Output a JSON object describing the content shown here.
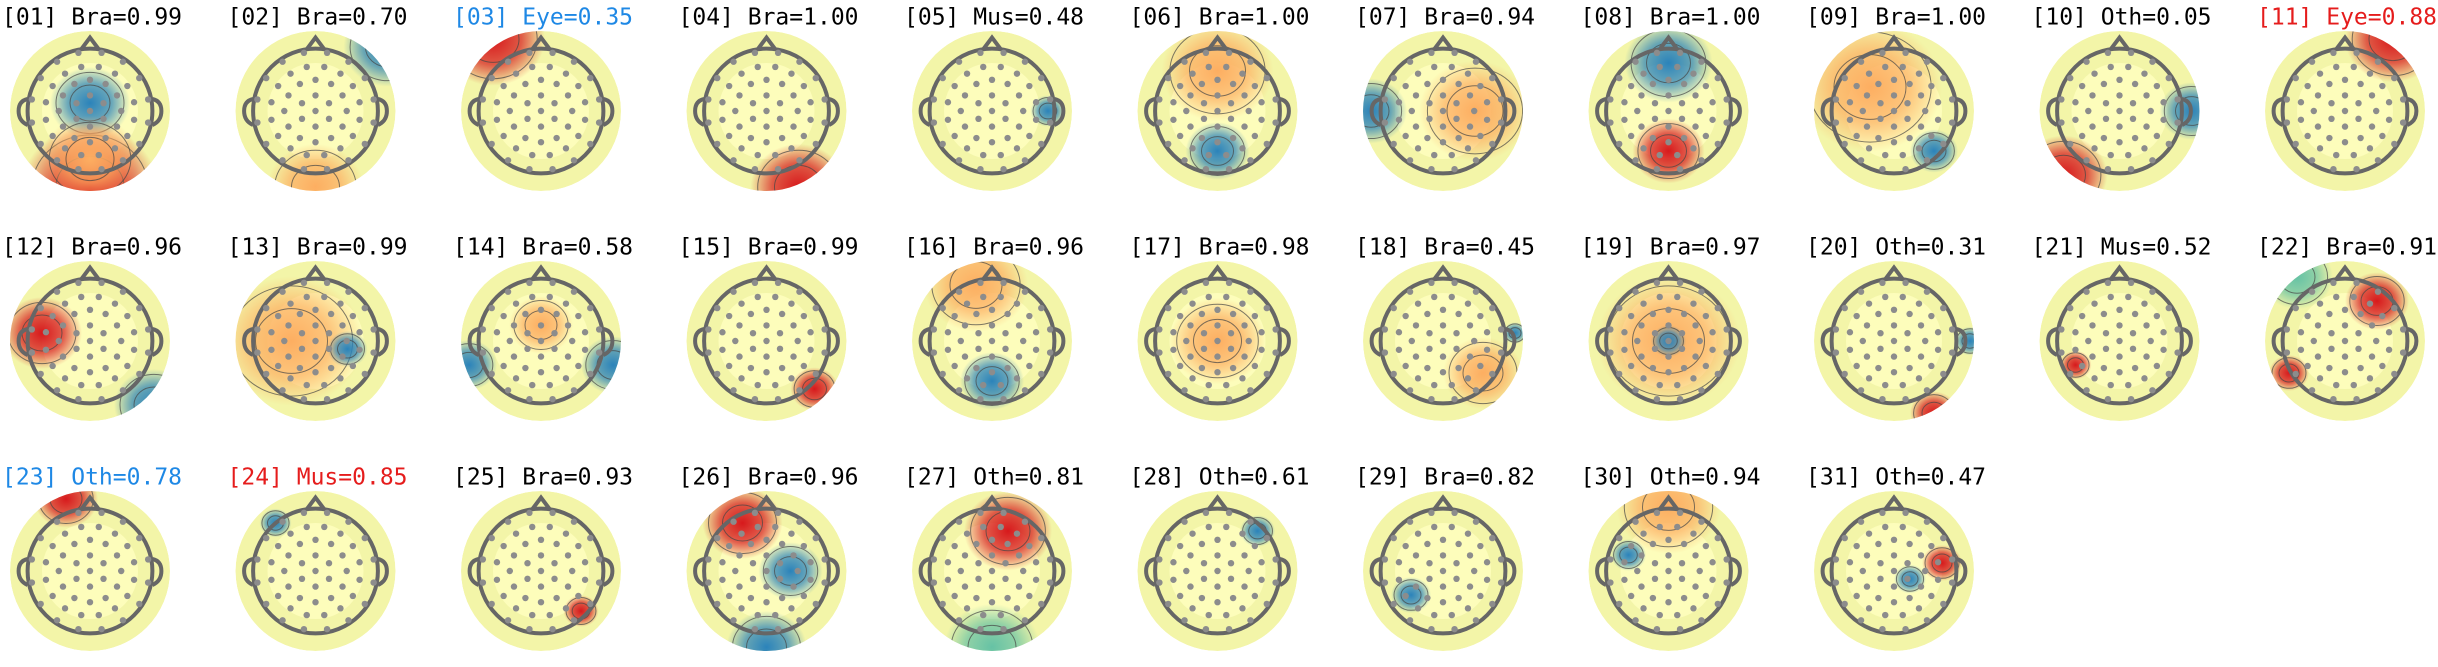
{
  "components": [
    {
      "label": "[01] Bra=0.99",
      "color": "#000000"
    },
    {
      "label": "[02] Bra=0.70",
      "color": "#000000"
    },
    {
      "label": "[03] Eye=0.35",
      "color": "#1e88e5"
    },
    {
      "label": "[04] Bra=1.00",
      "color": "#000000"
    },
    {
      "label": "[05] Mus=0.48",
      "color": "#000000"
    },
    {
      "label": "[06] Bra=1.00",
      "color": "#000000"
    },
    {
      "label": "[07] Bra=0.94",
      "color": "#000000"
    },
    {
      "label": "[08] Bra=1.00",
      "color": "#000000"
    },
    {
      "label": "[09] Bra=1.00",
      "color": "#000000"
    },
    {
      "label": "[10] Oth=0.05",
      "color": "#000000"
    },
    {
      "label": "[11] Eye=0.88",
      "color": "#e51c1c"
    },
    {
      "label": "[12] Bra=0.96",
      "color": "#000000"
    },
    {
      "label": "[13] Bra=0.99",
      "color": "#000000"
    },
    {
      "label": "[14] Bra=0.58",
      "color": "#000000"
    },
    {
      "label": "[15] Bra=0.99",
      "color": "#000000"
    },
    {
      "label": "[16] Bra=0.96",
      "color": "#000000"
    },
    {
      "label": "[17] Bra=0.98",
      "color": "#000000"
    },
    {
      "label": "[18] Bra=0.45",
      "color": "#000000"
    },
    {
      "label": "[19] Bra=0.97",
      "color": "#000000"
    },
    {
      "label": "[20] Oth=0.31",
      "color": "#000000"
    },
    {
      "label": "[21] Mus=0.52",
      "color": "#000000"
    },
    {
      "label": "[22] Bra=0.91",
      "color": "#000000"
    },
    {
      "label": "[23] Oth=0.78",
      "color": "#1e88e5"
    },
    {
      "label": "[24] Mus=0.85",
      "color": "#e51c1c"
    },
    {
      "label": "[25] Bra=0.93",
      "color": "#000000"
    },
    {
      "label": "[26] Bra=0.96",
      "color": "#000000"
    },
    {
      "label": "[27] Oth=0.81",
      "color": "#000000"
    },
    {
      "label": "[28] Oth=0.61",
      "color": "#000000"
    },
    {
      "label": "[29] Bra=0.82",
      "color": "#000000"
    },
    {
      "label": "[30] Oth=0.94",
      "color": "#000000"
    },
    {
      "label": "[31] Oth=0.47",
      "color": "#000000"
    }
  ]
}
